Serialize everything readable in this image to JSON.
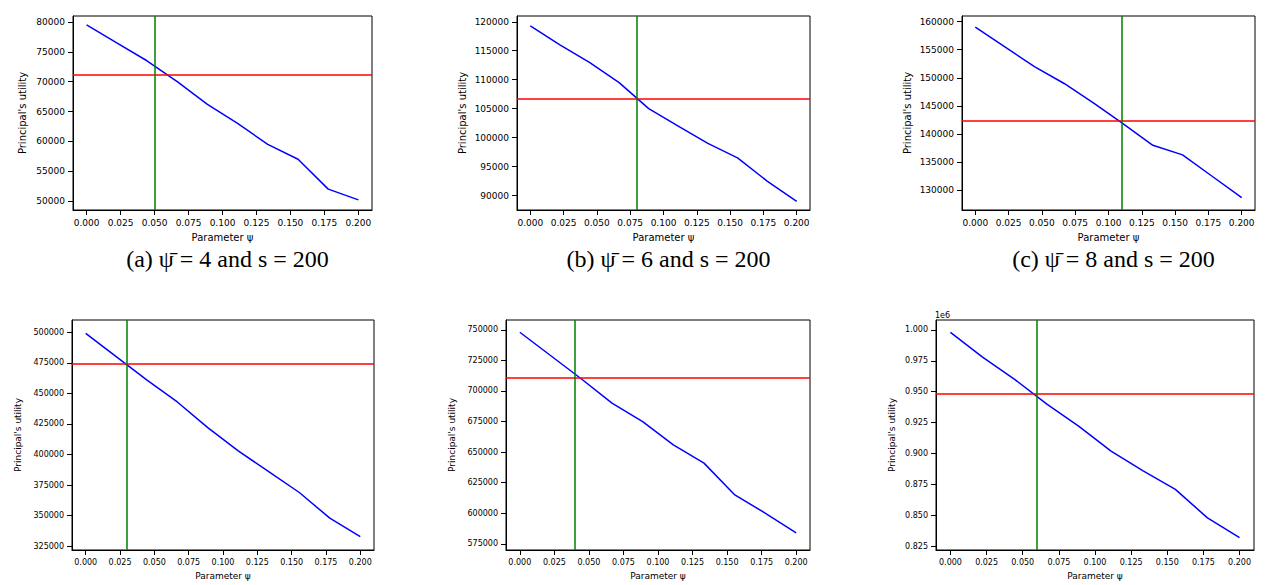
{
  "chart_data": [
    {
      "type": "line",
      "caption": "(a) ψ̄ = 4 and s = 200",
      "xlabel": "Parameter ψ",
      "ylabel": "Principal's utility",
      "x": [
        0,
        0.0222,
        0.0444,
        0.0667,
        0.0889,
        0.1111,
        0.1333,
        0.1556,
        0.1778,
        0.2
      ],
      "values": [
        79500,
        76500,
        73500,
        70000,
        66200,
        63000,
        59500,
        57000,
        52000,
        50200
      ],
      "color": "#0000ff",
      "hline": {
        "value": 71200,
        "color": "#ff0000"
      },
      "vline": {
        "value": 0.053,
        "color": "#008000"
      },
      "xlim": [
        -0.01,
        0.21
      ],
      "ylim": [
        48500,
        81000
      ],
      "xticks": [
        {
          "value": 0,
          "label": "0.000"
        },
        {
          "value": 0.025,
          "label": "0.025"
        },
        {
          "value": 0.05,
          "label": "0.050"
        },
        {
          "value": 0.075,
          "label": "0.075"
        },
        {
          "value": 0.1,
          "label": "0.100"
        },
        {
          "value": 0.125,
          "label": "0.125"
        },
        {
          "value": 0.15,
          "label": "0.150"
        },
        {
          "value": 0.175,
          "label": "0.175"
        },
        {
          "value": 0.2,
          "label": "0.200"
        }
      ],
      "yticks": [
        50000,
        55000,
        60000,
        65000,
        70000,
        75000,
        80000
      ],
      "grid": false
    },
    {
      "type": "line",
      "caption": "(b) ψ̄ = 6 and s = 200",
      "xlabel": "Parameter ψ",
      "ylabel": "Principal's utility",
      "x": [
        0,
        0.0222,
        0.0444,
        0.0667,
        0.0889,
        0.1111,
        0.1333,
        0.1556,
        0.1778,
        0.2
      ],
      "values": [
        119300,
        116000,
        113000,
        109500,
        105000,
        102000,
        99000,
        96500,
        92500,
        89000
      ],
      "color": "#0000ff",
      "hline": {
        "value": 106700,
        "color": "#ff0000"
      },
      "vline": {
        "value": 0.081,
        "color": "#008000"
      },
      "xlim": [
        -0.01,
        0.21
      ],
      "ylim": [
        87500,
        121000
      ],
      "xticks": [
        {
          "value": 0,
          "label": "0.000"
        },
        {
          "value": 0.025,
          "label": "0.025"
        },
        {
          "value": 0.05,
          "label": "0.050"
        },
        {
          "value": 0.075,
          "label": "0.075"
        },
        {
          "value": 0.1,
          "label": "0.100"
        },
        {
          "value": 0.125,
          "label": "0.125"
        },
        {
          "value": 0.15,
          "label": "0.150"
        },
        {
          "value": 0.175,
          "label": "0.175"
        },
        {
          "value": 0.2,
          "label": "0.200"
        }
      ],
      "yticks": [
        90000,
        95000,
        100000,
        105000,
        110000,
        115000,
        120000
      ],
      "grid": false
    },
    {
      "type": "line",
      "caption": "(c) ψ̄ = 8 and s = 200",
      "xlabel": "Parameter ψ",
      "ylabel": "Principal's utility",
      "x": [
        0,
        0.0222,
        0.0444,
        0.0667,
        0.0889,
        0.1111,
        0.1333,
        0.1556,
        0.1778,
        0.2
      ],
      "values": [
        159000,
        155500,
        152000,
        149000,
        145500,
        141800,
        138000,
        136300,
        132500,
        128700
      ],
      "color": "#0000ff",
      "hline": {
        "value": 142300,
        "color": "#ff0000"
      },
      "vline": {
        "value": 0.108,
        "color": "#008000"
      },
      "xlim": [
        -0.01,
        0.21
      ],
      "ylim": [
        126500,
        161000
      ],
      "xticks": [
        {
          "value": 0,
          "label": "0.000"
        },
        {
          "value": 0.025,
          "label": "0.025"
        },
        {
          "value": 0.05,
          "label": "0.050"
        },
        {
          "value": 0.075,
          "label": "0.075"
        },
        {
          "value": 0.1,
          "label": "0.100"
        },
        {
          "value": 0.125,
          "label": "0.125"
        },
        {
          "value": 0.15,
          "label": "0.150"
        },
        {
          "value": 0.175,
          "label": "0.175"
        },
        {
          "value": 0.2,
          "label": "0.200"
        }
      ],
      "yticks": [
        130000,
        135000,
        140000,
        145000,
        150000,
        155000,
        160000
      ],
      "grid": false
    },
    {
      "type": "line",
      "xlabel": "Parameter ψ",
      "ylabel": "Principal's utility",
      "x": [
        0,
        0.0222,
        0.0444,
        0.0667,
        0.0889,
        0.1111,
        0.1333,
        0.1556,
        0.1778,
        0.2
      ],
      "values": [
        499000,
        480000,
        461000,
        443000,
        422000,
        403000,
        386000,
        369000,
        348000,
        333000
      ],
      "color": "#0000ff",
      "hline": {
        "value": 474500,
        "color": "#ff0000"
      },
      "vline": {
        "value": 0.027,
        "color": "#008000"
      },
      "xlim": [
        -0.01,
        0.21
      ],
      "ylim": [
        322000,
        510000
      ],
      "xticks": [
        {
          "value": 0,
          "label": "0.000"
        },
        {
          "value": 0.025,
          "label": "0.025"
        },
        {
          "value": 0.05,
          "label": "0.050"
        },
        {
          "value": 0.075,
          "label": "0.075"
        },
        {
          "value": 0.1,
          "label": "0.100"
        },
        {
          "value": 0.125,
          "label": "0.125"
        },
        {
          "value": 0.15,
          "label": "0.150"
        },
        {
          "value": 0.175,
          "label": "0.175"
        },
        {
          "value": 0.2,
          "label": "0.200"
        }
      ],
      "yticks": [
        325000,
        350000,
        375000,
        400000,
        425000,
        450000,
        475000,
        500000
      ],
      "grid": false
    },
    {
      "type": "line",
      "xlabel": "Parameter ψ",
      "ylabel": "Principal's utility",
      "x": [
        0,
        0.0222,
        0.0444,
        0.0667,
        0.0889,
        0.1111,
        0.1333,
        0.1556,
        0.1778,
        0.2
      ],
      "values": [
        748000,
        729000,
        710000,
        690000,
        675000,
        656000,
        641000,
        615000,
        600000,
        584000
      ],
      "color": "#0000ff",
      "hline": {
        "value": 711000,
        "color": "#ff0000"
      },
      "vline": {
        "value": 0.043,
        "color": "#008000"
      },
      "xlim": [
        -0.01,
        0.21
      ],
      "ylim": [
        570000,
        758000
      ],
      "xticks": [
        {
          "value": 0,
          "label": "0.000"
        },
        {
          "value": 0.025,
          "label": "0.025"
        },
        {
          "value": 0.05,
          "label": "0.050"
        },
        {
          "value": 0.075,
          "label": "0.075"
        },
        {
          "value": 0.1,
          "label": "0.100"
        },
        {
          "value": 0.125,
          "label": "0.125"
        },
        {
          "value": 0.15,
          "label": "0.150"
        },
        {
          "value": 0.175,
          "label": "0.175"
        },
        {
          "value": 0.2,
          "label": "0.200"
        }
      ],
      "yticks": [
        575000,
        600000,
        625000,
        650000,
        675000,
        700000,
        725000,
        750000
      ],
      "grid": false
    },
    {
      "type": "line",
      "xlabel": "Parameter ψ",
      "ylabel": "Principal's utility",
      "annotation": "1e6",
      "x": [
        0,
        0.0222,
        0.0444,
        0.0667,
        0.0889,
        0.1111,
        0.1333,
        0.1556,
        0.1778,
        0.2
      ],
      "values": [
        998000,
        978000,
        960000,
        940000,
        922000,
        902000,
        886000,
        871000,
        848000,
        832000
      ],
      "color": "#0000ff",
      "hline": {
        "value": 948000,
        "color": "#ff0000"
      },
      "vline": {
        "value": 0.057,
        "color": "#008000"
      },
      "xlim": [
        -0.01,
        0.21
      ],
      "ylim": [
        822000,
        1008000
      ],
      "xticks": [
        {
          "value": 0,
          "label": "0.000"
        },
        {
          "value": 0.025,
          "label": "0.025"
        },
        {
          "value": 0.05,
          "label": "0.050"
        },
        {
          "value": 0.075,
          "label": "0.075"
        },
        {
          "value": 0.1,
          "label": "0.100"
        },
        {
          "value": 0.125,
          "label": "0.125"
        },
        {
          "value": 0.15,
          "label": "0.150"
        },
        {
          "value": 0.175,
          "label": "0.175"
        },
        {
          "value": 0.2,
          "label": "0.200"
        }
      ],
      "yticks": [
        {
          "value": 825000,
          "label": "0.825"
        },
        {
          "value": 850000,
          "label": "0.850"
        },
        {
          "value": 875000,
          "label": "0.875"
        },
        {
          "value": 900000,
          "label": "0.900"
        },
        {
          "value": 925000,
          "label": "0.925"
        },
        {
          "value": 950000,
          "label": "0.950"
        },
        {
          "value": 975000,
          "label": "0.975"
        },
        {
          "value": 1000000,
          "label": "1.000"
        }
      ],
      "grid": false
    }
  ]
}
